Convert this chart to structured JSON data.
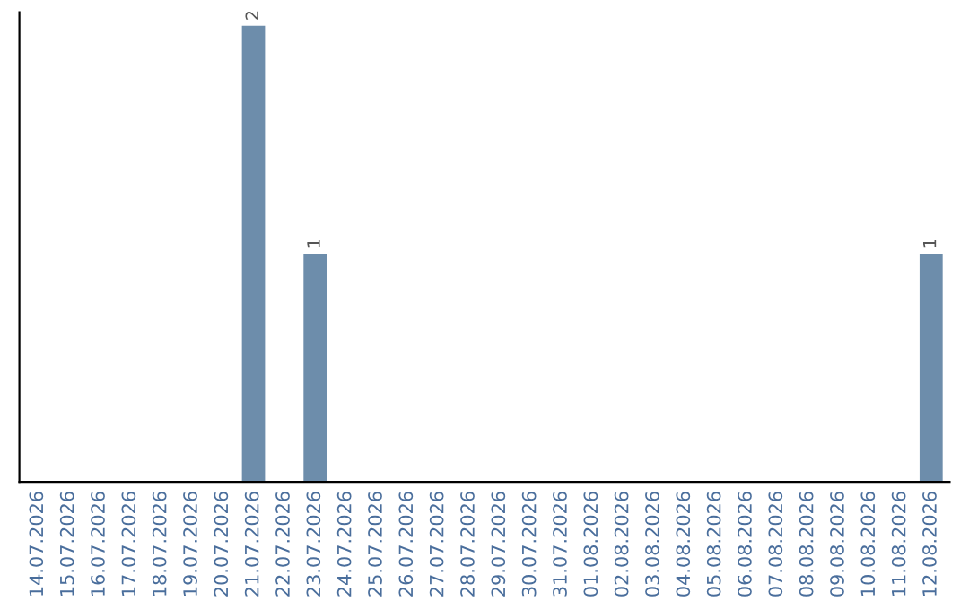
{
  "chart_data": {
    "type": "bar",
    "categories": [
      "14.07.2026",
      "15.07.2026",
      "16.07.2026",
      "17.07.2026",
      "18.07.2026",
      "19.07.2026",
      "20.07.2026",
      "21.07.2026",
      "22.07.2026",
      "23.07.2026",
      "24.07.2026",
      "25.07.2026",
      "26.07.2026",
      "27.07.2026",
      "28.07.2026",
      "29.07.2026",
      "30.07.2026",
      "31.07.2026",
      "01.08.2026",
      "02.08.2026",
      "03.08.2026",
      "04.08.2026",
      "05.08.2026",
      "06.08.2026",
      "07.08.2026",
      "08.08.2026",
      "09.08.2026",
      "10.08.2026",
      "11.08.2026",
      "12.08.2026"
    ],
    "values": [
      0,
      0,
      0,
      0,
      0,
      0,
      0,
      2,
      0,
      1,
      0,
      0,
      0,
      0,
      0,
      0,
      0,
      0,
      0,
      0,
      0,
      0,
      0,
      0,
      0,
      0,
      0,
      0,
      0,
      1
    ],
    "value_labels": [
      null,
      null,
      null,
      null,
      null,
      null,
      null,
      "2",
      null,
      "1",
      null,
      null,
      null,
      null,
      null,
      null,
      null,
      null,
      null,
      null,
      null,
      null,
      null,
      null,
      null,
      null,
      null,
      null,
      null,
      "1"
    ],
    "color": "#6d8dab",
    "tick_labels": "x",
    "grid": false,
    "legend": false
  }
}
